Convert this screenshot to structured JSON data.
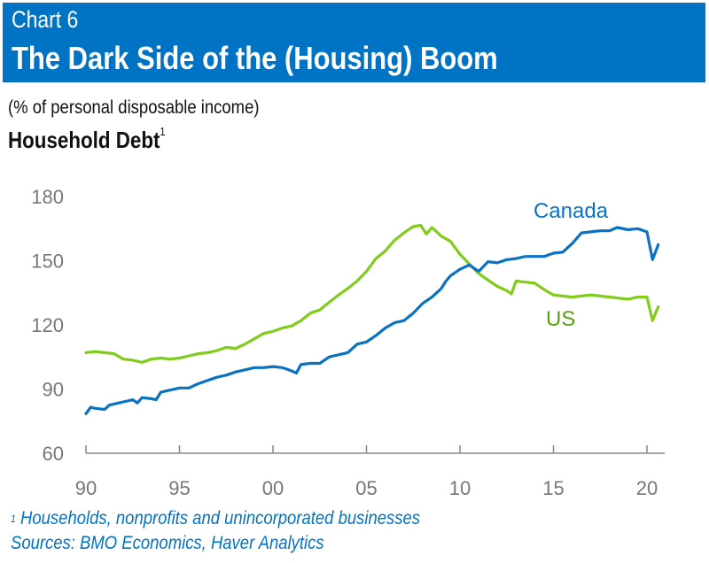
{
  "header": {
    "chart_number": "Chart 6",
    "title": "The Dark Side of the (Housing) Boom"
  },
  "units_label": "(% of personal disposable income)",
  "subtitle": "Household Debt",
  "subtitle_footnote_marker": "1",
  "footnote": {
    "marker": "1",
    "text": "Households, nonprofits and unincorporated businesses",
    "sources": "Sources: BMO Economics, Haver Analytics"
  },
  "colors": {
    "banner": "#0073c5",
    "canada": "#0a72c2",
    "us": "#7fcc1a",
    "us_label": "#5a9e12",
    "axis": "#888888"
  },
  "chart_data": {
    "type": "line",
    "title": "Household Debt",
    "ylabel": "(% of personal disposable income)",
    "xlabel": "",
    "xlim": [
      1990,
      2021
    ],
    "ylim": [
      60,
      180
    ],
    "y_ticks": [
      60,
      90,
      120,
      150,
      180
    ],
    "x_ticks": [
      {
        "year": 1990,
        "label": "90"
      },
      {
        "year": 1995,
        "label": "95"
      },
      {
        "year": 2000,
        "label": "00"
      },
      {
        "year": 2005,
        "label": "05"
      },
      {
        "year": 2010,
        "label": "10"
      },
      {
        "year": 2015,
        "label": "15"
      },
      {
        "year": 2020,
        "label": "20"
      }
    ],
    "grid": false,
    "series": [
      {
        "name": "Canada",
        "color_key": "canada",
        "x": [
          1990,
          1990.25,
          1990.5,
          1991,
          1991.25,
          1991.75,
          1992,
          1992.5,
          1992.75,
          1993,
          1993.5,
          1993.75,
          1994,
          1994.5,
          1995,
          1995.5,
          1996,
          1996.5,
          1997,
          1997.5,
          1998,
          1998.5,
          1999,
          1999.5,
          2000,
          2000.5,
          2001,
          2001.25,
          2001.5,
          2002,
          2002.5,
          2003,
          2003.5,
          2004,
          2004.5,
          2005,
          2005.5,
          2006,
          2006.5,
          2007,
          2007.5,
          2008,
          2008.5,
          2009,
          2009.25,
          2009.5,
          2010,
          2010.5,
          2011,
          2011.5,
          2012,
          2012.5,
          2013,
          2013.5,
          2014,
          2014.5,
          2015,
          2015.5,
          2016,
          2016.5,
          2017,
          2017.5,
          2018,
          2018.4,
          2019,
          2019.5,
          2020,
          2020.3,
          2020.6
        ],
        "values": [
          78.5,
          81.5,
          81,
          80.5,
          82.5,
          83.5,
          84,
          85,
          83.5,
          86,
          85.5,
          85,
          88.5,
          89.5,
          90.5,
          90.5,
          92.5,
          94,
          95.5,
          96.5,
          98,
          99,
          100,
          100,
          100.5,
          100,
          98.5,
          97.5,
          101.5,
          102,
          102,
          105,
          106,
          107,
          111,
          112,
          115,
          118.5,
          121,
          122,
          125.5,
          130,
          133,
          137,
          140.5,
          143,
          146,
          148,
          145,
          149.5,
          149,
          150.5,
          151,
          152,
          152,
          152,
          153.5,
          154,
          158,
          163,
          163.5,
          164,
          164,
          165.5,
          164.5,
          165,
          163.5,
          150.5,
          157.5
        ]
      },
      {
        "name": "US",
        "color_key": "us",
        "x": [
          1990,
          1990.5,
          1991,
          1991.5,
          1992,
          1992.5,
          1993,
          1993.5,
          1994,
          1994.5,
          1995,
          1995.5,
          1996,
          1996.5,
          1997,
          1997.5,
          1998,
          1998.5,
          1999,
          1999.5,
          2000,
          2000.5,
          2001,
          2001.5,
          2002,
          2002.5,
          2003,
          2003.5,
          2004,
          2004.5,
          2005,
          2005.5,
          2006,
          2006.5,
          2007,
          2007.5,
          2007.9,
          2008.2,
          2008.5,
          2009,
          2009.5,
          2010,
          2010.5,
          2011,
          2011.5,
          2012,
          2012.5,
          2012.75,
          2013,
          2013.5,
          2014,
          2014.5,
          2015,
          2015.5,
          2016,
          2016.5,
          2017,
          2017.5,
          2018,
          2018.5,
          2019,
          2019.5,
          2020,
          2020.3,
          2020.6
        ],
        "values": [
          107,
          107.5,
          107,
          106.5,
          104,
          103.5,
          102.5,
          104,
          104.5,
          104,
          104.5,
          105.5,
          106.5,
          107,
          108,
          109.5,
          109,
          111,
          113.5,
          116,
          117,
          118.5,
          119.5,
          122,
          125.5,
          127,
          130.5,
          134,
          137,
          140.5,
          145,
          151,
          154.5,
          159.5,
          163,
          166,
          166.5,
          162.5,
          165.5,
          161.5,
          159,
          153,
          148.5,
          144,
          141,
          138,
          136,
          134.5,
          140.5,
          140,
          139.5,
          136.5,
          134,
          133.5,
          133,
          133.5,
          134,
          133.5,
          133,
          132.5,
          132,
          133,
          133,
          122,
          128.5
        ]
      }
    ]
  }
}
